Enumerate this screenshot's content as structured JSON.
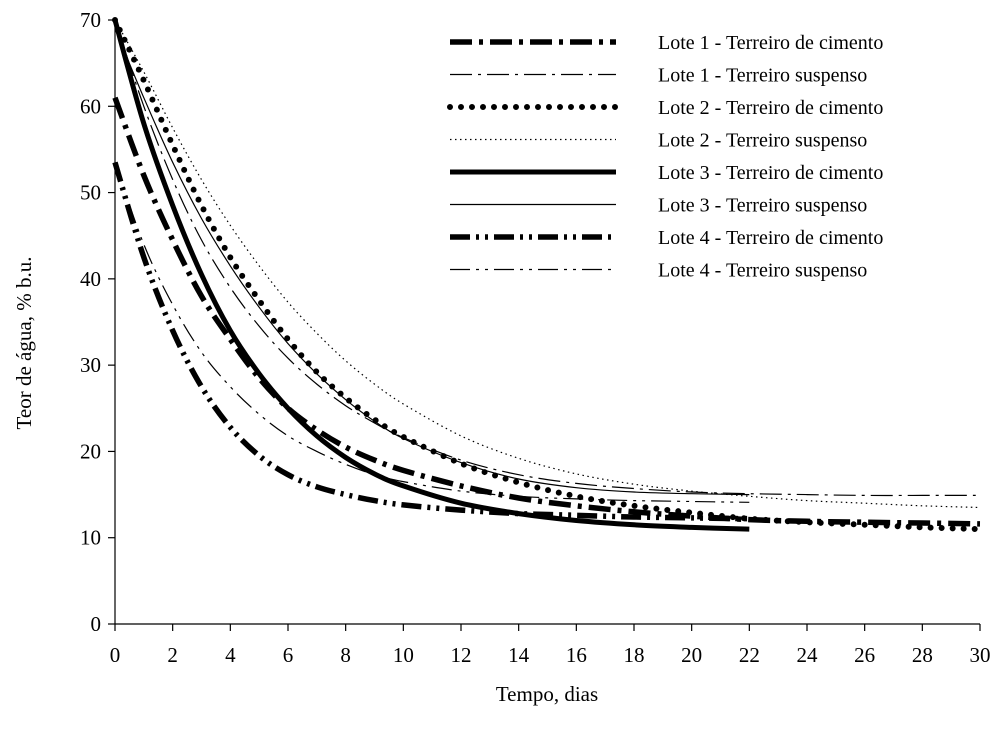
{
  "chart_data": {
    "type": "line",
    "title": "",
    "xlabel": "Tempo, dias",
    "ylabel": "Teor de água, % b.u.",
    "xlim": [
      0,
      30
    ],
    "ylim": [
      0,
      70
    ],
    "xticks": [
      0,
      2,
      4,
      6,
      8,
      10,
      12,
      14,
      16,
      18,
      20,
      22,
      24,
      26,
      28,
      30
    ],
    "yticks": [
      0,
      10,
      20,
      30,
      40,
      50,
      60,
      70
    ],
    "grid": false,
    "legend_position": "top-right",
    "series": [
      {
        "name": "Lote 1 - Terreiro de cimento",
        "style": "thick-dash-dot",
        "color": "#000000",
        "x": [
          0,
          1,
          2,
          3,
          4,
          5,
          6,
          7,
          8,
          9,
          10,
          12,
          14,
          16,
          18,
          20,
          22,
          24,
          26,
          28,
          30
        ],
        "y": [
          61,
          52,
          44.5,
          38,
          33,
          28.5,
          25,
          22.5,
          20.5,
          19,
          17.8,
          16,
          14.6,
          13.7,
          13,
          12.5,
          12.1,
          11.9,
          11.8,
          11.7,
          11.6
        ]
      },
      {
        "name": "Lote 1 - Terreiro suspenso",
        "style": "thin-dash-dot",
        "color": "#000000",
        "x": [
          0,
          1,
          2,
          3,
          4,
          5,
          6,
          7,
          8,
          9,
          10,
          12,
          14,
          16,
          18,
          20,
          22,
          24,
          26,
          28,
          30
        ],
        "y": [
          70,
          60,
          51.5,
          44.5,
          39,
          34.5,
          30.8,
          27.8,
          25.3,
          23.3,
          21.6,
          19,
          17.3,
          16.3,
          15.7,
          15.3,
          15.1,
          15,
          14.9,
          14.9,
          14.9
        ]
      },
      {
        "name": "Lote 2 - Terreiro de cimento",
        "style": "thick-dotted",
        "color": "#000000",
        "x": [
          0,
          1,
          2,
          3,
          4,
          5,
          6,
          7,
          8,
          9,
          10,
          12,
          14,
          16,
          18,
          20,
          22,
          24,
          26,
          28,
          30
        ],
        "y": [
          70,
          63,
          55.5,
          48.5,
          42.5,
          37.5,
          33,
          29.2,
          26.2,
          23.7,
          21.7,
          18.6,
          16.4,
          14.8,
          13.7,
          12.9,
          12.2,
          11.8,
          11.5,
          11.2,
          11
        ]
      },
      {
        "name": "Lote 2 - Terreiro suspenso",
        "style": "thin-dotted",
        "color": "#000000",
        "x": [
          0,
          1,
          2,
          3,
          4,
          5,
          6,
          7,
          8,
          9,
          10,
          12,
          14,
          16,
          18,
          20,
          22,
          24,
          26,
          28,
          30
        ],
        "y": [
          70,
          64,
          57.5,
          51.5,
          46.2,
          41.5,
          37.3,
          33.7,
          30.5,
          27.8,
          25.5,
          21.8,
          19.2,
          17.4,
          16.2,
          15.4,
          14.8,
          14.3,
          14,
          13.7,
          13.5
        ]
      },
      {
        "name": "Lote 3 - Terreiro de cimento",
        "style": "thick-solid",
        "color": "#000000",
        "x": [
          0,
          1,
          2,
          3,
          4,
          5,
          6,
          7,
          8,
          9,
          10,
          12,
          14,
          16,
          18,
          20,
          22
        ],
        "y": [
          70,
          58,
          48.5,
          40.5,
          34,
          29,
          25,
          21.8,
          19.3,
          17.4,
          16,
          14,
          12.8,
          12,
          11.5,
          11.2,
          11
        ]
      },
      {
        "name": "Lote 3 - Terreiro suspenso",
        "style": "thin-solid",
        "color": "#000000",
        "x": [
          0,
          1,
          2,
          3,
          4,
          5,
          6,
          7,
          8,
          9,
          10,
          12,
          14,
          16,
          18,
          20,
          22
        ],
        "y": [
          69,
          61,
          53.5,
          47,
          41.5,
          36.7,
          32.5,
          29,
          26,
          23.5,
          21.5,
          18.7,
          16.8,
          15.8,
          15.3,
          15.1,
          15
        ]
      },
      {
        "name": "Lote 4 - Terreiro de cimento",
        "style": "thick-dash-dot-dot",
        "color": "#000000",
        "x": [
          0,
          1,
          2,
          3,
          4,
          5,
          6,
          7,
          8,
          9,
          10,
          12,
          14,
          16,
          18,
          20,
          22
        ],
        "y": [
          53.5,
          42.5,
          34,
          27.5,
          22.8,
          19.5,
          17.3,
          15.9,
          15,
          14.3,
          13.8,
          13.2,
          12.8,
          12.6,
          12.4,
          12.3,
          12.2
        ]
      },
      {
        "name": "Lote 4 - Terreiro suspenso",
        "style": "thin-dash-dot-dot",
        "color": "#000000",
        "x": [
          0,
          1,
          2,
          3,
          4,
          5,
          6,
          7,
          8,
          9,
          10,
          12,
          14,
          16,
          18,
          20,
          22
        ],
        "y": [
          53.5,
          44,
          37,
          31.5,
          27.5,
          24.3,
          21.8,
          20,
          18.5,
          17.3,
          16.5,
          15.4,
          14.8,
          14.5,
          14.3,
          14.2,
          14.1
        ]
      }
    ]
  }
}
